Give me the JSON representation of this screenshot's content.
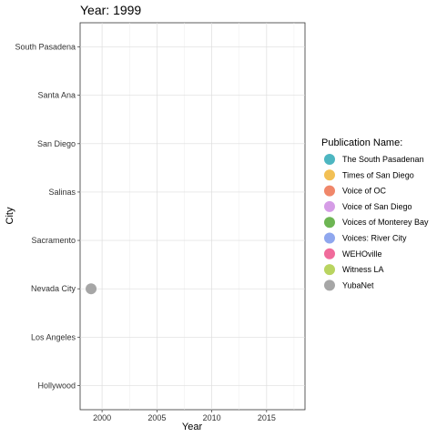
{
  "chart_data": {
    "type": "scatter",
    "title": "Year: 1999",
    "xlabel": "Year",
    "ylabel": "City",
    "xlim": [
      1998,
      2018.5
    ],
    "x_ticks": [
      2000,
      2005,
      2010,
      2015
    ],
    "categories": [
      "Hollywood",
      "Los Angeles",
      "Nevada City",
      "Sacramento",
      "Salinas",
      "San Diego",
      "Santa Ana",
      "South Pasadena"
    ],
    "grid": true,
    "legend": {
      "title": "Publication Name:",
      "position": "right",
      "entries": [
        {
          "label": "The South Pasadenan",
          "color": "#4DB6C1"
        },
        {
          "label": "Times of San Diego",
          "color": "#F2C055"
        },
        {
          "label": "Voice of OC",
          "color": "#F0876A"
        },
        {
          "label": "Voice of San Diego",
          "color": "#D59CE6"
        },
        {
          "label": "Voices of Monterey Bay",
          "color": "#6DB553"
        },
        {
          "label": "Voices: River City",
          "color": "#8FA7EE"
        },
        {
          "label": "WEHOville",
          "color": "#F06B9B"
        },
        {
          "label": "Witness LA",
          "color": "#B9D460"
        },
        {
          "label": "YubaNet",
          "color": "#A6A6A6"
        }
      ]
    },
    "points": [
      {
        "x": 1999,
        "y": "Nevada City",
        "publication": "YubaNet",
        "color": "#A6A6A6"
      }
    ]
  }
}
